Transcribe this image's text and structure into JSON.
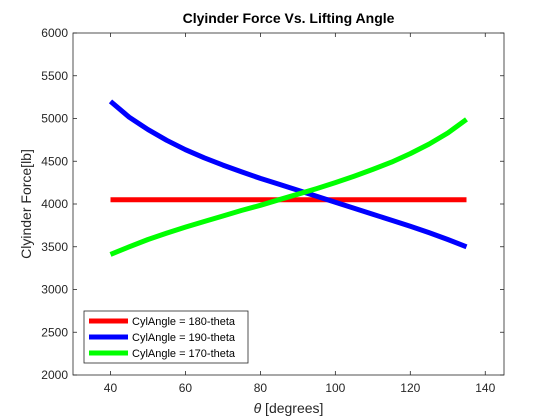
{
  "chart_data": {
    "type": "line",
    "title": "Clyinder Force Vs. Lifting Angle",
    "xlabel_symbol": "θ",
    "xlabel_text": " [degrees]",
    "ylabel": "Clyinder Force[lb]",
    "xlim": [
      30,
      145
    ],
    "ylim": [
      2000,
      6000
    ],
    "xticks": [
      40,
      60,
      80,
      100,
      120,
      140
    ],
    "yticks": [
      2000,
      2500,
      3000,
      3500,
      4000,
      4500,
      5000,
      5500,
      6000
    ],
    "grid": false,
    "legend_position": "bottom-left",
    "series": [
      {
        "name": "CylAngle = 180-theta",
        "color": "#ff0000",
        "x": [
          40,
          135
        ],
        "y": [
          4050,
          4050
        ]
      },
      {
        "name": "CylAngle = 190-theta",
        "color": "#0000ff",
        "x": [
          40,
          45,
          50,
          55,
          60,
          65,
          70,
          75,
          80,
          85,
          90,
          95,
          100,
          105,
          110,
          115,
          120,
          125,
          130,
          135
        ],
        "y": [
          5200,
          5015,
          4870,
          4745,
          4635,
          4540,
          4455,
          4375,
          4300,
          4230,
          4160,
          4090,
          4020,
          3950,
          3880,
          3810,
          3740,
          3665,
          3585,
          3500
        ]
      },
      {
        "name": "CylAngle = 170-theta",
        "color": "#00ff00",
        "x": [
          40,
          45,
          50,
          55,
          60,
          65,
          70,
          75,
          80,
          85,
          90,
          95,
          100,
          105,
          110,
          115,
          120,
          125,
          130,
          135
        ],
        "y": [
          3410,
          3500,
          3585,
          3660,
          3730,
          3795,
          3860,
          3925,
          3985,
          4050,
          4115,
          4180,
          4250,
          4325,
          4405,
          4490,
          4590,
          4700,
          4830,
          4990
        ]
      }
    ]
  }
}
